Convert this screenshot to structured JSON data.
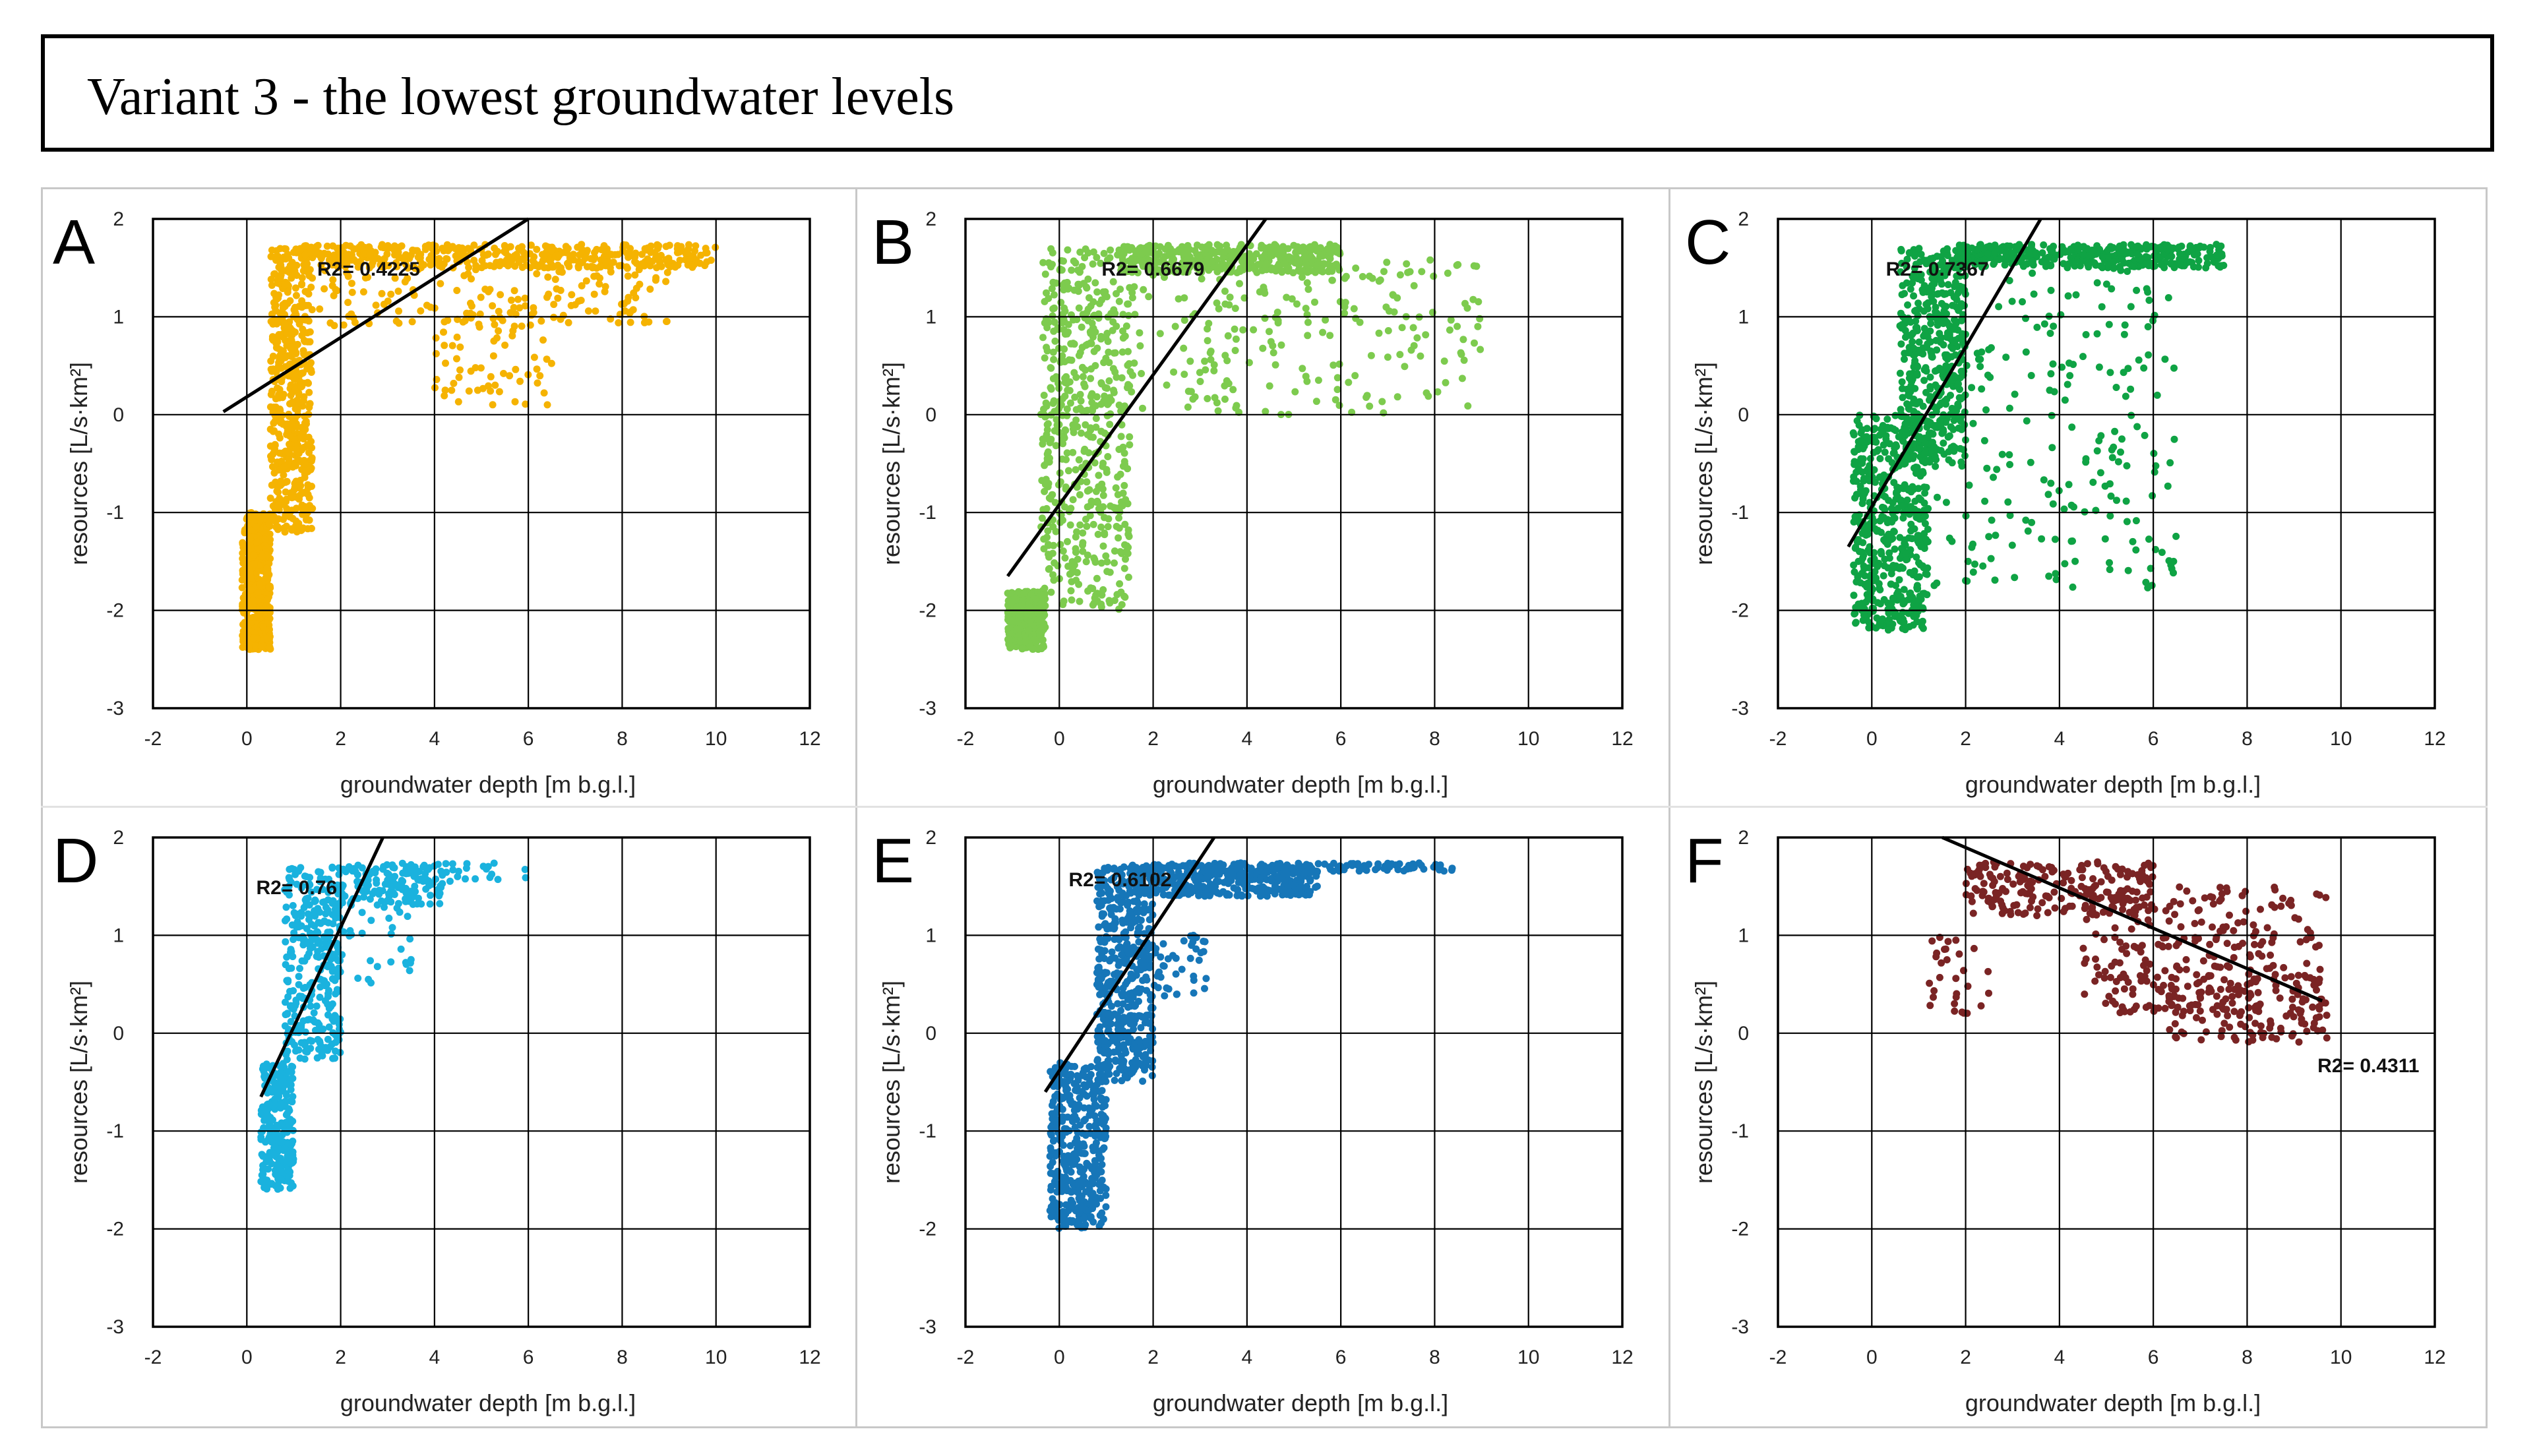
{
  "figure": {
    "title": "Variant 3 - the lowest groundwater levels"
  },
  "chart_data": [
    {
      "panel": "A",
      "type": "scatter",
      "color": "#F5B301",
      "xlabel": "groundwater depth [m b.g.l.]",
      "ylabel": "resources [L/s·km²]",
      "xlim": [
        -2,
        12
      ],
      "ylim": [
        -3,
        2
      ],
      "xticks": [
        "-2",
        "0",
        "2",
        "4",
        "6",
        "8",
        "10",
        "12"
      ],
      "yticks": [
        "2",
        "1",
        "0",
        "-1",
        "-2",
        "-3"
      ],
      "r2_label": "R2= 0.4225",
      "trendline": {
        "x": [
          -0.5,
          6.0
        ],
        "y": [
          0.03,
          2.0
        ]
      },
      "clusters": [
        {
          "count": 520,
          "x": [
            -0.1,
            0.5
          ],
          "y": [
            -2.4,
            -1.0
          ]
        },
        {
          "count": 520,
          "x": [
            0.5,
            1.4
          ],
          "y": [
            -1.2,
            1.7
          ]
        },
        {
          "count": 420,
          "x": [
            1.2,
            10.0
          ],
          "y": [
            1.5,
            1.74
          ]
        },
        {
          "count": 160,
          "x": [
            1.5,
            9.0
          ],
          "y": [
            0.9,
            1.55
          ]
        },
        {
          "count": 60,
          "x": [
            4.0,
            6.5
          ],
          "y": [
            0.1,
            1.0
          ]
        }
      ]
    },
    {
      "panel": "B",
      "type": "scatter",
      "color": "#7DCB4E",
      "xlabel": "groundwater depth [m b.g.l.]",
      "ylabel": "resources [L/s·km²]",
      "xlim": [
        -2,
        12
      ],
      "ylim": [
        -3,
        2
      ],
      "xticks": [
        "-2",
        "0",
        "2",
        "4",
        "6",
        "8",
        "10",
        "12"
      ],
      "yticks": [
        "2",
        "1",
        "0",
        "-1",
        "-2",
        "-3"
      ],
      "r2_label": "R2= 0.6679",
      "trendline": {
        "x": [
          -1.1,
          4.4
        ],
        "y": [
          -1.65,
          2.0
        ]
      },
      "clusters": [
        {
          "count": 420,
          "x": [
            -1.1,
            -0.3
          ],
          "y": [
            -2.4,
            -1.8
          ]
        },
        {
          "count": 550,
          "x": [
            -0.4,
            1.5
          ],
          "y": [
            -2.0,
            1.7
          ]
        },
        {
          "count": 420,
          "x": [
            1.3,
            6.0
          ],
          "y": [
            1.45,
            1.74
          ]
        },
        {
          "count": 220,
          "x": [
            1.5,
            9.0
          ],
          "y": [
            0.0,
            1.6
          ]
        }
      ]
    },
    {
      "panel": "C",
      "type": "scatter",
      "color": "#0FA344",
      "xlabel": "groundwater depth [m b.g.l.]",
      "ylabel": "resources [L/s·km²]",
      "xlim": [
        -2,
        12
      ],
      "ylim": [
        -3,
        2
      ],
      "xticks": [
        "-2",
        "0",
        "2",
        "4",
        "6",
        "8",
        "10",
        "12"
      ],
      "yticks": [
        "2",
        "1",
        "0",
        "-1",
        "-2",
        "-3"
      ],
      "r2_label": "R2= 0.7367",
      "trendline": {
        "x": [
          -0.5,
          3.6
        ],
        "y": [
          -1.35,
          2.0
        ]
      },
      "clusters": [
        {
          "count": 520,
          "x": [
            -0.4,
            1.2
          ],
          "y": [
            -2.2,
            0.0
          ]
        },
        {
          "count": 450,
          "x": [
            0.6,
            2.0
          ],
          "y": [
            -0.5,
            1.7
          ]
        },
        {
          "count": 400,
          "x": [
            1.8,
            7.5
          ],
          "y": [
            1.5,
            1.74
          ]
        },
        {
          "count": 220,
          "x": [
            1.0,
            6.5
          ],
          "y": [
            -1.8,
            1.5
          ]
        }
      ]
    },
    {
      "panel": "D",
      "type": "scatter",
      "color": "#1AB2DE",
      "xlabel": "groundwater depth [m b.g.l.]",
      "ylabel": "resources [L/s·km²]",
      "xlim": [
        -2,
        12
      ],
      "ylim": [
        -3,
        2
      ],
      "xticks": [
        "-2",
        "0",
        "2",
        "4",
        "6",
        "8",
        "10",
        "12"
      ],
      "yticks": [
        "2",
        "1",
        "0",
        "-1",
        "-2",
        "-3"
      ],
      "r2_label": "R2= 0.76",
      "trendline": {
        "x": [
          0.3,
          2.9
        ],
        "y": [
          -0.65,
          2.0
        ]
      },
      "clusters": [
        {
          "count": 260,
          "x": [
            0.3,
            1.0
          ],
          "y": [
            -1.6,
            -0.3
          ]
        },
        {
          "count": 300,
          "x": [
            0.8,
            2.0
          ],
          "y": [
            -0.3,
            1.7
          ]
        },
        {
          "count": 160,
          "x": [
            1.8,
            4.2
          ],
          "y": [
            1.3,
            1.74
          ]
        },
        {
          "count": 40,
          "x": [
            1.5,
            3.5
          ],
          "y": [
            0.5,
            1.3
          ]
        },
        {
          "count": 20,
          "x": [
            4.2,
            6.0
          ],
          "y": [
            1.55,
            1.74
          ]
        }
      ]
    },
    {
      "panel": "E",
      "type": "scatter",
      "color": "#1676B8",
      "xlabel": "groundwater depth [m b.g.l.]",
      "ylabel": "resources [L/s·km²]",
      "xlim": [
        -2,
        12
      ],
      "ylim": [
        -3,
        2
      ],
      "xticks": [
        "-2",
        "0",
        "2",
        "4",
        "6",
        "8",
        "10",
        "12"
      ],
      "yticks": [
        "2",
        "1",
        "0",
        "-1",
        "-2",
        "-3"
      ],
      "r2_label": "R2= 0.6102",
      "trendline": {
        "x": [
          -0.3,
          3.3
        ],
        "y": [
          -0.6,
          2.0
        ]
      },
      "clusters": [
        {
          "count": 400,
          "x": [
            -0.2,
            1.0
          ],
          "y": [
            -2.0,
            -0.3
          ]
        },
        {
          "count": 480,
          "x": [
            0.8,
            2.0
          ],
          "y": [
            -0.5,
            1.7
          ]
        },
        {
          "count": 420,
          "x": [
            1.5,
            5.5
          ],
          "y": [
            1.4,
            1.74
          ]
        },
        {
          "count": 60,
          "x": [
            5.5,
            8.5
          ],
          "y": [
            1.65,
            1.74
          ]
        },
        {
          "count": 40,
          "x": [
            2.0,
            3.2
          ],
          "y": [
            0.2,
            1.0
          ]
        }
      ]
    },
    {
      "panel": "F",
      "type": "scatter",
      "color": "#7A2424",
      "xlabel": "groundwater depth [m b.g.l.]",
      "ylabel": "resources [L/s·km²]",
      "xlim": [
        -2,
        12
      ],
      "ylim": [
        -3,
        2
      ],
      "xticks": [
        "-2",
        "0",
        "2",
        "4",
        "6",
        "8",
        "10",
        "12"
      ],
      "yticks": [
        "2",
        "1",
        "0",
        "-1",
        "-2",
        "-3"
      ],
      "r2_label": "R2= 0.4311",
      "trendline": {
        "x": [
          1.5,
          9.6
        ],
        "y": [
          2.0,
          0.33
        ]
      },
      "clusters": [
        {
          "count": 200,
          "x": [
            2.0,
            6.0
          ],
          "y": [
            1.2,
            1.75
          ]
        },
        {
          "count": 260,
          "x": [
            4.5,
            9.7
          ],
          "y": [
            0.2,
            1.5
          ]
        },
        {
          "count": 120,
          "x": [
            6.0,
            9.7
          ],
          "y": [
            -0.1,
            0.6
          ]
        },
        {
          "count": 30,
          "x": [
            1.2,
            2.5
          ],
          "y": [
            0.2,
            1.0
          ]
        }
      ]
    }
  ]
}
